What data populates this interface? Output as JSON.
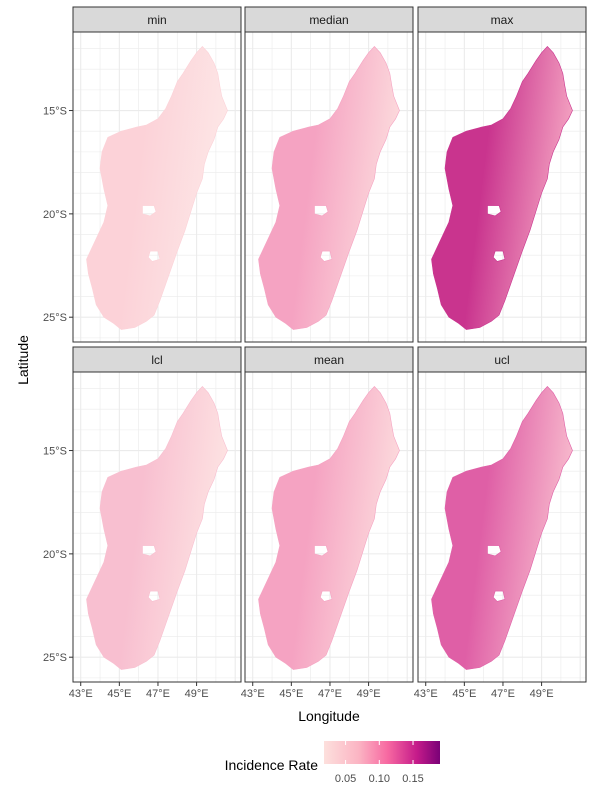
{
  "figure": {
    "x_axis_title": "Longitude",
    "y_axis_title": "Latitude",
    "x_ticks": [
      "43°E",
      "45°E",
      "47°E",
      "49°E"
    ],
    "y_ticks": [
      "15°S",
      "20°S",
      "25°S"
    ],
    "legend": {
      "title": "Incidence Rate",
      "ticks": [
        "0.05",
        "0.10",
        "0.15"
      ],
      "colors": [
        "#fde0dd",
        "#fbb4c3",
        "#f768a1",
        "#c51b8a",
        "#7a0177"
      ]
    }
  },
  "chart_data": {
    "type": "heatmap",
    "map_region": "Madagascar",
    "x_label": "Longitude",
    "y_label": "Latitude",
    "x_ticks": [
      "43°E",
      "45°E",
      "47°E",
      "49°E"
    ],
    "y_ticks": [
      "15°S",
      "20°S",
      "25°S"
    ],
    "colorbar": {
      "title": "Incidence Rate",
      "ticks": [
        0.05,
        0.1,
        0.15
      ],
      "palette": "RdPu"
    },
    "panels": [
      {
        "name": "min",
        "approx_range": [
          0.02,
          0.06
        ],
        "fill": "#fcd2d8",
        "east_fill": "#fde6e6"
      },
      {
        "name": "median",
        "approx_range": [
          0.03,
          0.1
        ],
        "fill": "#f5a3c2",
        "east_fill": "#fcd9dc"
      },
      {
        "name": "max",
        "approx_range": [
          0.05,
          0.18
        ],
        "fill": "#c9348e",
        "east_fill": "#f3a0c0"
      },
      {
        "name": "lcl",
        "approx_range": [
          0.02,
          0.07
        ],
        "fill": "#f8bfd0",
        "east_fill": "#fde2e2"
      },
      {
        "name": "mean",
        "approx_range": [
          0.03,
          0.1
        ],
        "fill": "#f5a3c2",
        "east_fill": "#fcd9dc"
      },
      {
        "name": "ucl",
        "approx_range": [
          0.04,
          0.15
        ],
        "fill": "#df5fa6",
        "east_fill": "#f7b8cc"
      }
    ]
  }
}
